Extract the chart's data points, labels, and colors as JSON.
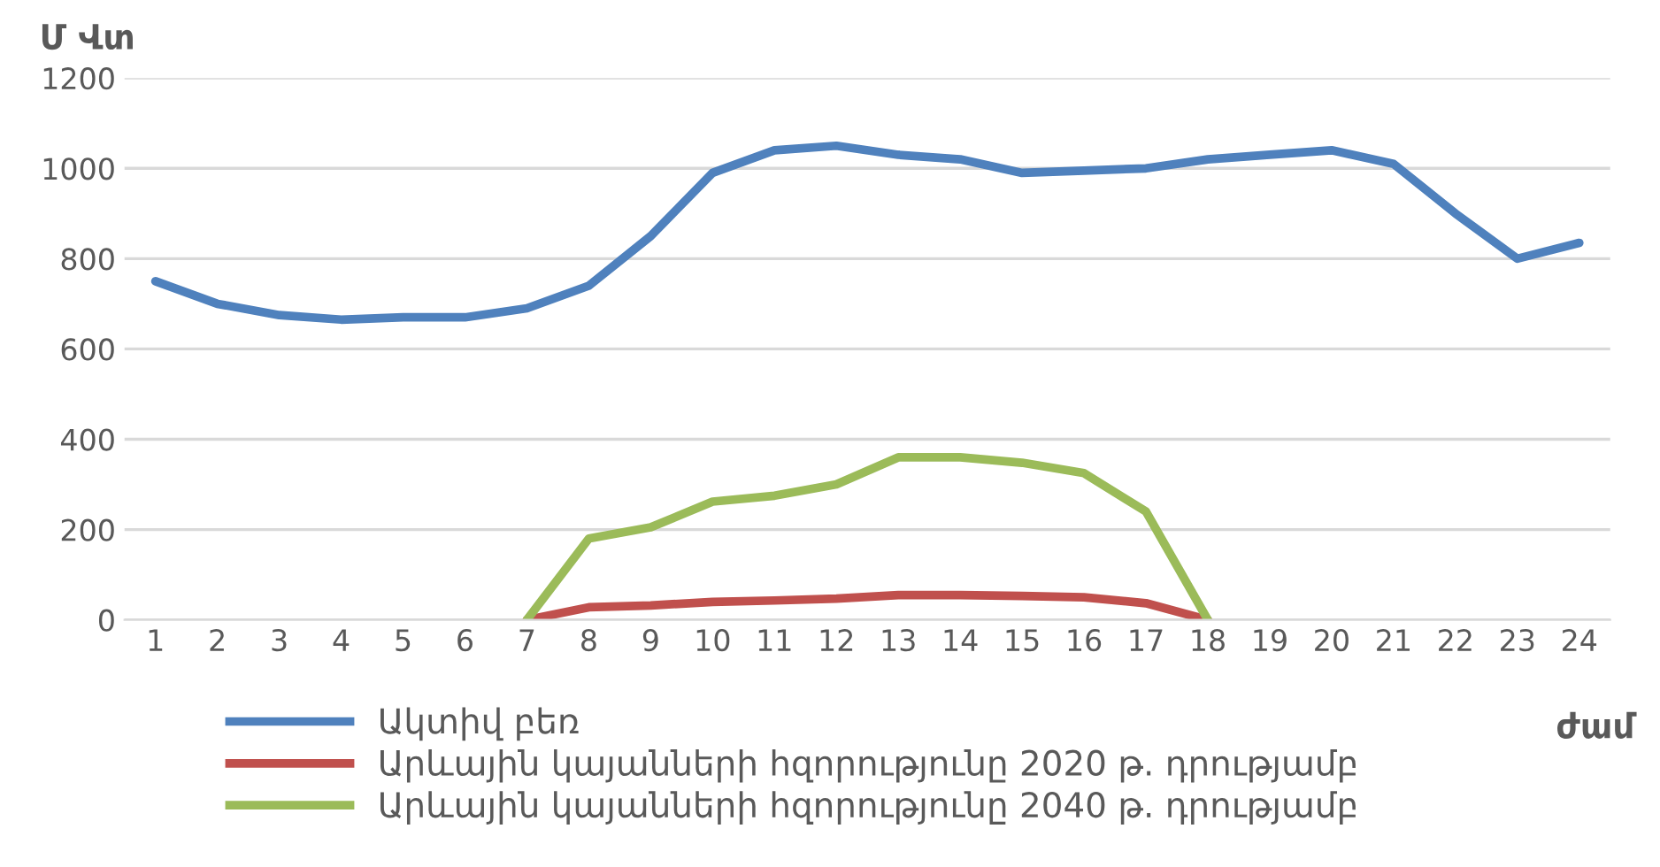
{
  "chart_data": {
    "type": "line",
    "ylabel": "Մ Վտ",
    "xlabel": "ժամ",
    "categories": [
      "1",
      "2",
      "3",
      "4",
      "5",
      "6",
      "7",
      "8",
      "9",
      "10",
      "11",
      "12",
      "13",
      "14",
      "15",
      "16",
      "17",
      "18",
      "19",
      "20",
      "21",
      "22",
      "23",
      "24"
    ],
    "series": [
      {
        "name": "Ակտիվ բեռ",
        "color": "#4f81bd",
        "values": [
          750,
          700,
          675,
          665,
          670,
          670,
          690,
          740,
          850,
          990,
          1040,
          1050,
          1030,
          1020,
          990,
          995,
          1000,
          1020,
          1030,
          1040,
          1010,
          900,
          800,
          835
        ]
      },
      {
        "name": "Արևային կայանների հզորությունը 2020 թ. դրությամբ",
        "color": "#c0504d",
        "values": [
          null,
          null,
          null,
          null,
          null,
          null,
          0,
          28,
          32,
          40,
          43,
          47,
          55,
          55,
          53,
          50,
          37,
          0,
          null,
          null,
          null,
          null,
          null,
          null
        ]
      },
      {
        "name": "Արևային կայանների հզորությունը 2040 թ. դրությամբ",
        "color": "#9bbb59",
        "values": [
          null,
          null,
          null,
          null,
          null,
          null,
          0,
          180,
          205,
          262,
          275,
          300,
          360,
          360,
          348,
          325,
          240,
          0,
          null,
          null,
          null,
          null,
          null,
          null
        ]
      }
    ],
    "ylim": [
      0,
      1200
    ],
    "yticks": [
      0,
      200,
      400,
      600,
      800,
      1000,
      1200
    ],
    "grid": "y",
    "legend": "bottom",
    "marker": "none",
    "line_style": "solid"
  }
}
